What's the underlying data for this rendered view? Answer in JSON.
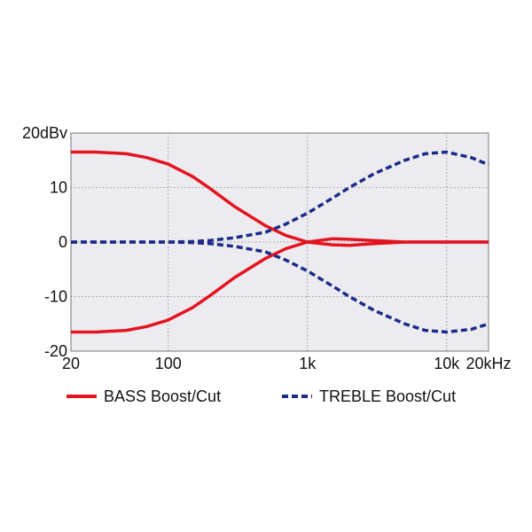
{
  "chart_data": {
    "type": "line",
    "x": [
      20,
      30,
      50,
      70,
      100,
      150,
      200,
      300,
      500,
      700,
      1000,
      1500,
      2000,
      3000,
      5000,
      7000,
      10000,
      15000,
      20000
    ],
    "series": [
      {
        "name": "BASS Boost/Cut",
        "color": "#e3141f",
        "dashed": false,
        "values": [
          [
            16.5,
            16.5,
            16.2,
            15.5,
            14.3,
            12,
            9.8,
            6.5,
            3,
            1.2,
            0,
            -0.5,
            -0.6,
            -0.3,
            0,
            0,
            0,
            0,
            0
          ],
          [
            -16.5,
            -16.5,
            -16.2,
            -15.5,
            -14.3,
            -12,
            -9.8,
            -6.5,
            -3,
            -1.2,
            0,
            0.6,
            0.5,
            0.3,
            0,
            0,
            0,
            0,
            0
          ]
        ]
      },
      {
        "name": "TREBLE Boost/Cut",
        "color": "#1c2a88",
        "dashed": true,
        "values": [
          [
            0,
            0,
            0,
            0,
            0,
            0.1,
            0.3,
            0.8,
            1.8,
            3.3,
            5.3,
            8,
            10,
            12.5,
            15,
            16.2,
            16.5,
            15.5,
            14.2
          ],
          [
            0,
            0,
            0,
            0,
            0,
            -0.1,
            -0.3,
            -0.8,
            -1.8,
            -3.3,
            -5.3,
            -8,
            -10,
            -12.5,
            -15,
            -16.2,
            -16.5,
            -16,
            -15
          ]
        ]
      }
    ],
    "log_x": true,
    "grid": true,
    "xlim": [
      20,
      20000
    ],
    "xticks": [
      20,
      100,
      {
        "value": 1000,
        "label": "1k"
      },
      {
        "value": 10000,
        "label": "10k"
      },
      {
        "value": 20000,
        "label": "20kHz"
      }
    ],
    "ylim": [
      -20,
      20
    ],
    "yticks": [
      -20,
      -10,
      0,
      10,
      {
        "value": 20,
        "label": "20dBv"
      }
    ]
  }
}
